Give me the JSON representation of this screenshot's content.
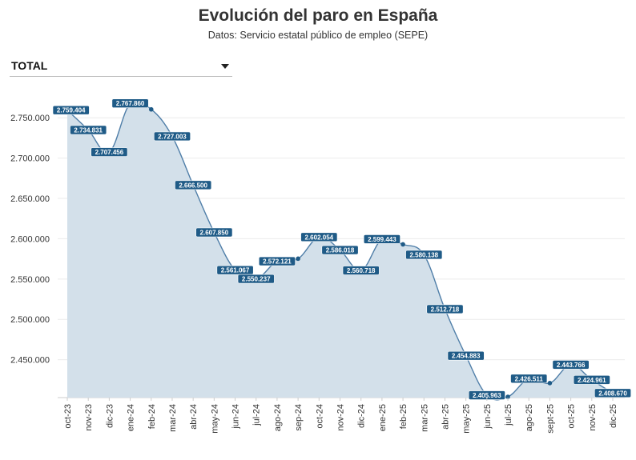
{
  "title": "Evolución del paro en España",
  "subtitle": "Datos: Servicio estatal público de empleo (SEPE)",
  "selector": {
    "selected": "TOTAL"
  },
  "colors": {
    "line": "#4f7ea8",
    "fill": "#d3e0ea",
    "label_bg": "#1f5b87",
    "grid": "#ebebeb"
  },
  "chart_data": {
    "type": "area",
    "title": "Evolución del paro en España",
    "xlabel": "",
    "ylabel": "",
    "ylim": [
      2403000,
      2777000
    ],
    "grid": true,
    "categories": [
      "oct-23",
      "nov-23",
      "dic-23",
      "ene-24",
      "feb-24",
      "mar-24",
      "abr-24",
      "may-24",
      "jun-24",
      "jul-24",
      "ago-24",
      "sep-24",
      "oct-24",
      "nov-24",
      "dic-24",
      "ene-25",
      "feb-25",
      "mar-25",
      "abr-25",
      "may-25",
      "jun-25",
      "jul-25",
      "ago-25",
      "sept-25",
      "oct-25",
      "nov-25",
      "dic-25"
    ],
    "values": [
      2759404,
      2734831,
      2707456,
      2767860,
      2760408,
      2727003,
      2666500,
      2607850,
      2561067,
      2550237,
      2572121,
      2575280,
      2602054,
      2586018,
      2560718,
      2599443,
      2593000,
      2580138,
      2512718,
      2454883,
      2405963,
      2404000,
      2426511,
      2421000,
      2443766,
      2424961,
      2408670
    ],
    "value_labels": [
      "2.759.404",
      "2.734.831",
      "2.707.456",
      "2.767.860",
      "",
      "2.727.003",
      "2.666.500",
      "2.607.850",
      "2.561.067",
      "2.550.237",
      "2.572.121",
      "",
      "2.602.054",
      "2.586.018",
      "2.560.718",
      "2.599.443",
      "",
      "2.580.138",
      "2.512.718",
      "2.454.883",
      "2.405.963",
      "",
      "2.426.511",
      "",
      "2.443.766",
      "2.424.961",
      "2.408.670"
    ],
    "markers": [
      4,
      11,
      16,
      21,
      23
    ],
    "y_ticks": [
      {
        "value": 2450000,
        "label": "2.450.000"
      },
      {
        "value": 2500000,
        "label": "2.500.000"
      },
      {
        "value": 2550000,
        "label": "2.550.000"
      },
      {
        "value": 2600000,
        "label": "2.600.000"
      },
      {
        "value": 2650000,
        "label": "2.650.000"
      },
      {
        "value": 2700000,
        "label": "2.700.000"
      },
      {
        "value": 2750000,
        "label": "2.750.000"
      }
    ]
  }
}
